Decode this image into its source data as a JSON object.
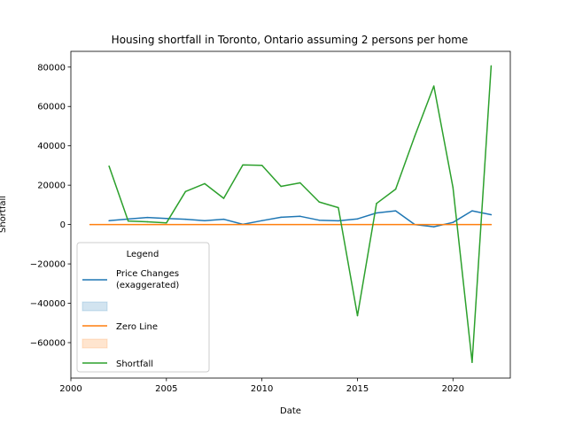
{
  "chart_data": {
    "type": "line",
    "title": "Housing shortfall in Toronto, Ontario assuming 2 persons per home",
    "xlabel": "Date",
    "ylabel": "Shortfall",
    "xlim": [
      2000.0,
      2023.0
    ],
    "ylim": [
      -78000,
      88000
    ],
    "x_ticks": [
      2000,
      2005,
      2010,
      2015,
      2020
    ],
    "x_tick_labels": [
      "2000",
      "2005",
      "2010",
      "2015",
      "2020"
    ],
    "y_ticks": [
      -60000,
      -40000,
      -20000,
      0,
      20000,
      40000,
      60000,
      80000
    ],
    "y_tick_labels": [
      "−60000",
      "−40000",
      "−20000",
      "0",
      "20000",
      "40000",
      "60000",
      "80000"
    ],
    "grid": false,
    "legend": {
      "title": "Legend",
      "placement": "lower-left",
      "entries": [
        {
          "label": "Price Changes\n(exaggerated)",
          "kind": "line",
          "color": "#1f77b4"
        },
        {
          "label": "",
          "kind": "patch",
          "color": "#1f77b4"
        },
        {
          "label": "Zero Line",
          "kind": "line",
          "color": "#ff7f0e"
        },
        {
          "label": "",
          "kind": "patch",
          "color": "#ff7f0e"
        },
        {
          "label": "Shortfall",
          "kind": "line",
          "color": "#2ca02c"
        }
      ]
    },
    "series": [
      {
        "name": "Price Changes\n(exaggerated)",
        "color": "#1f77b4",
        "x": [
          2002,
          2003,
          2004,
          2005,
          2006,
          2007,
          2008,
          2009,
          2010,
          2011,
          2012,
          2013,
          2014,
          2015,
          2016,
          2017,
          2018,
          2019,
          2020,
          2021,
          2022
        ],
        "y": [
          2000,
          2800,
          3600,
          3100,
          2700,
          2000,
          2700,
          100,
          2000,
          3700,
          4200,
          2200,
          1900,
          2900,
          5900,
          7000,
          0,
          -1100,
          1100,
          7000,
          5000
        ]
      },
      {
        "name": "Zero Line",
        "color": "#ff7f0e",
        "x": [
          2001,
          2022
        ],
        "y": [
          0,
          0
        ]
      },
      {
        "name": "Shortfall",
        "color": "#2ca02c",
        "x": [
          2002,
          2003,
          2004,
          2005,
          2006,
          2007,
          2008,
          2009,
          2010,
          2011,
          2012,
          2013,
          2014,
          2015,
          2016,
          2017,
          2018,
          2019,
          2020,
          2021,
          2022
        ],
        "y": [
          29700,
          1800,
          1400,
          800,
          16800,
          20800,
          13300,
          30300,
          30100,
          19400,
          21200,
          11500,
          8600,
          -46300,
          10700,
          18000,
          45000,
          70400,
          18800,
          -70000,
          80600
        ]
      }
    ]
  }
}
